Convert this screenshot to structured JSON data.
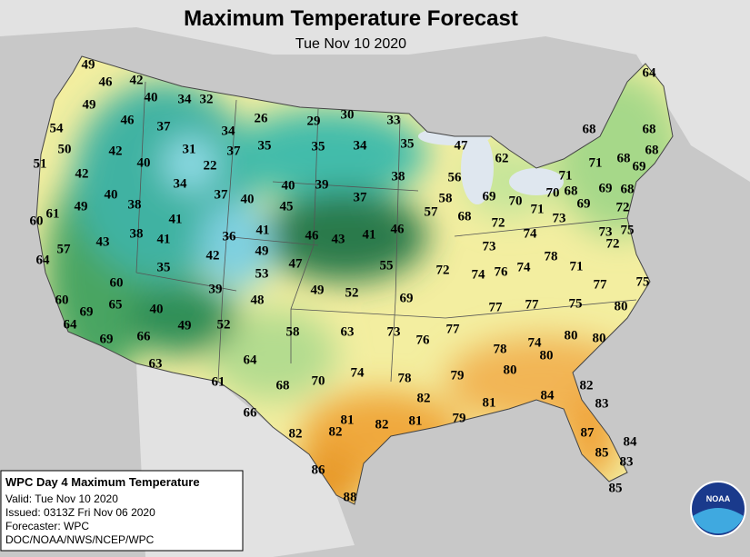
{
  "header": {
    "title": "Maximum Temperature Forecast",
    "date": "Tue Nov 10 2020"
  },
  "temperatures": [
    49,
    46,
    42,
    40,
    34,
    32,
    49,
    46,
    37,
    26,
    29,
    30,
    33,
    54,
    34,
    50,
    42,
    31,
    37,
    35,
    35,
    34,
    35,
    47,
    62,
    51,
    40,
    22,
    38,
    56,
    71,
    71,
    68,
    64,
    68,
    68,
    68,
    69,
    42,
    34,
    40,
    39,
    37,
    58,
    69,
    70,
    70,
    68,
    69,
    68,
    40,
    38,
    37,
    40,
    45,
    57,
    68,
    71,
    69,
    72,
    60,
    61,
    49,
    41,
    73,
    72,
    74,
    73,
    75,
    72,
    36,
    41,
    46,
    43,
    41,
    46,
    38,
    41,
    43,
    42,
    49,
    73,
    78,
    74,
    57,
    47,
    55,
    72,
    74,
    76,
    71,
    64,
    35,
    53,
    77,
    75,
    60,
    39,
    49,
    52,
    48,
    69,
    77,
    77,
    75,
    80,
    60,
    65,
    69,
    40,
    64,
    49,
    52,
    58,
    63,
    73,
    76,
    77,
    80,
    80,
    74,
    69,
    66,
    78,
    63,
    64,
    80,
    80,
    61,
    68,
    70,
    74,
    78,
    79,
    82,
    82,
    81,
    84,
    83,
    66,
    81,
    82,
    81,
    79,
    82,
    82,
    87,
    84,
    85,
    83,
    86,
    88,
    85
  ],
  "info": {
    "title": "WPC Day 4 Maximum Temperature",
    "lines": [
      "Valid: Tue Nov 10 2020",
      "Issued: 0313Z Fri Nov 06 2020",
      "Forecaster: WPC",
      "DOC/NOAA/NWS/NCEP/WPC"
    ]
  },
  "logo": "NOAA"
}
